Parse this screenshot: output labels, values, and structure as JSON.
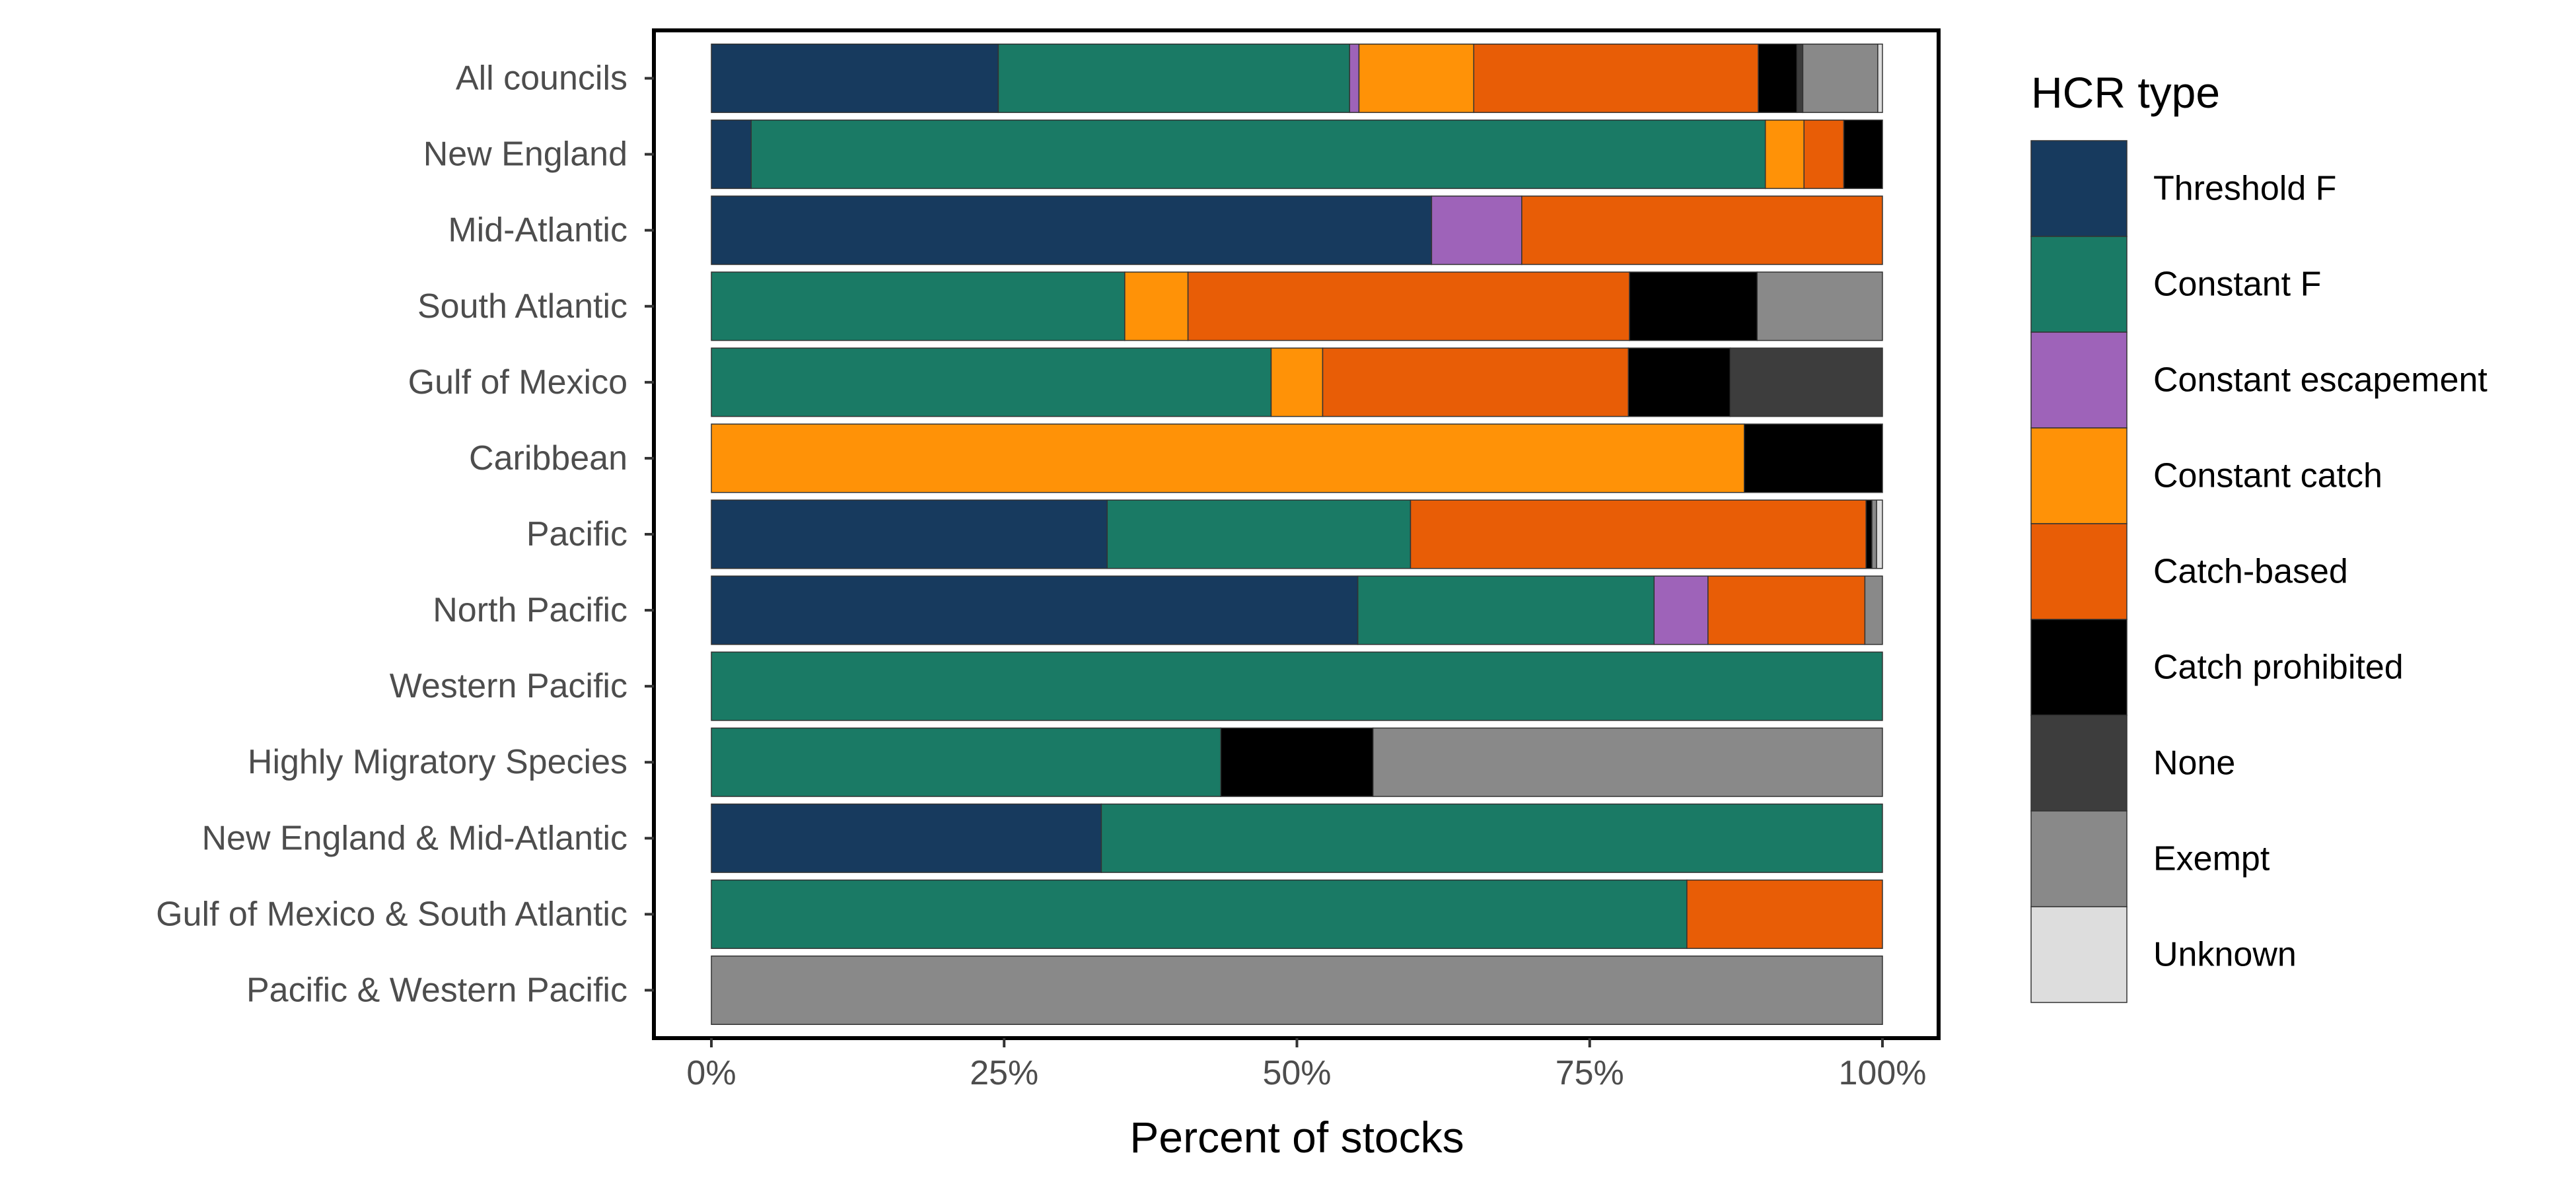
{
  "chart_data": {
    "type": "bar",
    "orientation": "horizontal",
    "stacked": true,
    "xlabel": "Percent of stocks",
    "ylabel": "",
    "xlim": [
      0,
      100
    ],
    "x_ticks": [
      0,
      25,
      50,
      75,
      100
    ],
    "x_tick_labels": [
      "0%",
      "25%",
      "50%",
      "75%",
      "100%"
    ],
    "grid": false,
    "legend": {
      "title": "HCR type",
      "position": "right"
    },
    "categories": [
      "All councils",
      "New England",
      "Mid-Atlantic",
      "South Atlantic",
      "Gulf of Mexico",
      "Caribbean",
      "Pacific",
      "North Pacific",
      "Western Pacific",
      "Highly Migratory Species",
      "New England & Mid-Atlantic",
      "Gulf of Mexico & South Atlantic",
      "Pacific & Western Pacific"
    ],
    "series": [
      {
        "name": "Threshold F",
        "color": "#173A5E",
        "values": [
          24.5,
          3.4,
          61.5,
          0,
          0,
          0,
          33.8,
          55.2,
          0,
          0,
          33.3,
          0,
          0
        ]
      },
      {
        "name": "Constant F",
        "color": "#1A7A65",
        "values": [
          30.0,
          86.6,
          0,
          35.3,
          47.8,
          0,
          25.9,
          25.3,
          100,
          43.5,
          66.7,
          83.3,
          0
        ]
      },
      {
        "name": "Constant escapement",
        "color": "#9E63B9",
        "values": [
          0.8,
          0,
          7.7,
          0,
          0,
          0,
          0,
          4.6,
          0,
          0,
          0,
          0,
          0
        ]
      },
      {
        "name": "Constant catch",
        "color": "#FF9207",
        "values": [
          9.8,
          3.3,
          0,
          5.4,
          4.4,
          88.2,
          0,
          0,
          0,
          0,
          0,
          0,
          0
        ]
      },
      {
        "name": "Catch-based",
        "color": "#E85D06",
        "values": [
          24.3,
          3.4,
          30.8,
          37.7,
          26.1,
          0,
          38.9,
          13.4,
          0,
          0,
          0,
          16.7,
          0
        ]
      },
      {
        "name": "Catch prohibited",
        "color": "#000000",
        "values": [
          3.3,
          3.3,
          0,
          10.9,
          8.7,
          11.8,
          0.5,
          0,
          0,
          13.0,
          0,
          0,
          0
        ]
      },
      {
        "name": "None",
        "color": "#3D3D3D",
        "values": [
          0.5,
          0,
          0,
          0,
          13.0,
          0,
          0,
          0,
          0,
          0,
          0,
          0,
          0
        ]
      },
      {
        "name": "Exempt",
        "color": "#898989",
        "values": [
          6.4,
          0,
          0,
          10.7,
          0,
          0,
          0.4,
          1.5,
          0,
          43.5,
          0,
          0,
          100
        ]
      },
      {
        "name": "Unknown",
        "color": "#DDDDDD",
        "values": [
          0.4,
          0,
          0,
          0,
          0,
          0,
          0.5,
          0,
          0,
          0,
          0,
          0,
          0
        ]
      }
    ]
  }
}
